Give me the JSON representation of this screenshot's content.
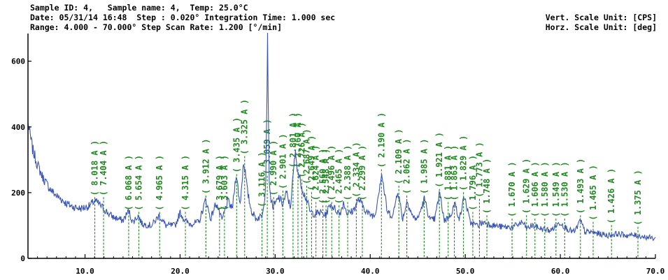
{
  "header": {
    "line1": "Sample ID: 4,   Sample name: 4,  Temp: 25.0°C",
    "line2": "Date: 05/31/14 16:48  Step : 0.020° Integration Time: 1.000 sec",
    "line3": "Range: 4.000 - 70.000° Step Scan Rate: 1.200 [°/min]",
    "vert_unit": "Vert. Scale Unit: [CPS]",
    "horz_unit": "Horz. Scale Unit: [deg]"
  },
  "colors": {
    "trace": "#3a55b5",
    "peaks": "#1f8a1f",
    "axis": "#000000"
  },
  "chart_data": {
    "type": "line",
    "title": "",
    "xlabel": "",
    "ylabel": "",
    "xlim": [
      4,
      70
    ],
    "ylim": [
      0,
      680
    ],
    "grid": false,
    "x_ticks": [
      10,
      20,
      30,
      40,
      50,
      60,
      70
    ],
    "x_tick_labels": [
      "10.0",
      "20.0",
      "30.0",
      "40.0",
      "50.0",
      "60.0",
      "70.0"
    ],
    "y_ticks": [
      0,
      200,
      400,
      600
    ],
    "y_tick_labels": [
      "0",
      "200",
      "400",
      "600"
    ],
    "series": [
      {
        "x": [
          4.0,
          4.5,
          5.0,
          5.5,
          6.0,
          6.5,
          7.0,
          7.5,
          8.0,
          8.5,
          9.0,
          9.5,
          10.0,
          10.5,
          11.0,
          11.5,
          12.0,
          12.5,
          13.0,
          14.0,
          14.6,
          15.0,
          15.6,
          16.0,
          17.0,
          17.8,
          18.5,
          19.5,
          20.0,
          20.5,
          21.0,
          22.0,
          22.7,
          23.2,
          23.8,
          24.4,
          25.0,
          25.5,
          25.9,
          26.3,
          26.7,
          27.1,
          27.5,
          28.0,
          28.6,
          29.0,
          29.2,
          29.4,
          29.8,
          30.4,
          30.8,
          31.2,
          31.6,
          32.1,
          32.5,
          33.0,
          33.3,
          33.7,
          34.2,
          34.8,
          35.3,
          35.8,
          36.3,
          36.8,
          37.2,
          37.6,
          38.2,
          38.8,
          39.2,
          39.8,
          40.5,
          41.2,
          41.8,
          42.4,
          42.9,
          43.4,
          43.9,
          44.5,
          45.0,
          45.7,
          46.3,
          46.8,
          47.3,
          47.8,
          48.4,
          48.9,
          49.4,
          49.9,
          50.5,
          51.2,
          52.0,
          53.0,
          54.0,
          55.0,
          56.0,
          56.5,
          57.0,
          58.0,
          59.0,
          60.0,
          60.5,
          61.0,
          61.5,
          62.1,
          62.6,
          63.2,
          64.0,
          65.0,
          66.0,
          67.0,
          68.0,
          69.0,
          70.0
        ],
        "y": [
          410,
          330,
          285,
          250,
          225,
          205,
          190,
          180,
          168,
          160,
          155,
          152,
          155,
          160,
          175,
          165,
          150,
          135,
          125,
          115,
          145,
          110,
          130,
          105,
          100,
          130,
          100,
          100,
          140,
          115,
          105,
          110,
          180,
          120,
          170,
          115,
          175,
          150,
          260,
          160,
          300,
          200,
          145,
          120,
          130,
          210,
          660,
          200,
          155,
          185,
          165,
          200,
          155,
          320,
          250,
          200,
          180,
          140,
          135,
          140,
          130,
          165,
          150,
          135,
          170,
          135,
          145,
          180,
          160,
          135,
          130,
          260,
          140,
          130,
          210,
          120,
          175,
          125,
          120,
          180,
          115,
          120,
          200,
          115,
          130,
          165,
          120,
          190,
          110,
          100,
          110,
          100,
          95,
          95,
          110,
          90,
          100,
          90,
          85,
          110,
          95,
          85,
          80,
          115,
          80,
          80,
          75,
          70,
          75,
          70,
          70,
          65,
          60
        ]
      }
    ],
    "peaks": [
      {
        "x": 11.03,
        "y": 165,
        "label": "8.018 A"
      },
      {
        "x": 11.95,
        "y": 165,
        "label": "7.404 A"
      },
      {
        "x": 14.59,
        "y": 120,
        "label": "6.068 A"
      },
      {
        "x": 15.66,
        "y": 120,
        "label": "5.654 A"
      },
      {
        "x": 17.85,
        "y": 120,
        "label": "4.965 A"
      },
      {
        "x": 20.56,
        "y": 120,
        "label": "4.315 A"
      },
      {
        "x": 22.71,
        "y": 170,
        "label": "3.912 A"
      },
      {
        "x": 24.15,
        "y": 120,
        "label": "3.679 A"
      },
      {
        "x": 24.67,
        "y": 120,
        "label": "3.603 A"
      },
      {
        "x": 25.95,
        "y": 235,
        "label": "3.435 A"
      },
      {
        "x": 26.79,
        "y": 290,
        "label": "3.325 A"
      },
      {
        "x": 28.62,
        "y": 130,
        "label": "3.116 A"
      },
      {
        "x": 29.17,
        "y": 230,
        "label": "3.059 A"
      },
      {
        "x": 29.84,
        "y": 165,
        "label": "2.990 A"
      },
      {
        "x": 30.81,
        "y": 185,
        "label": "2.901 A"
      },
      {
        "x": 31.88,
        "y": 250,
        "label": "2.801 A"
      },
      {
        "x": 32.4,
        "y": 250,
        "label": "2.760 A"
      },
      {
        "x": 32.81,
        "y": 220,
        "label": "2.726 A"
      },
      {
        "x": 33.32,
        "y": 200,
        "label": "2.687 A"
      },
      {
        "x": 33.83,
        "y": 180,
        "label": "2.649 A"
      },
      {
        "x": 34.29,
        "y": 150,
        "label": "2.624 A"
      },
      {
        "x": 35.02,
        "y": 140,
        "label": "2.560 A"
      },
      {
        "x": 35.35,
        "y": 140,
        "label": "2.548 A"
      },
      {
        "x": 35.95,
        "y": 150,
        "label": "2.496 A"
      },
      {
        "x": 36.72,
        "y": 140,
        "label": "2.465 A"
      },
      {
        "x": 37.63,
        "y": 150,
        "label": "2.388 A"
      },
      {
        "x": 38.54,
        "y": 160,
        "label": "2.334 A"
      },
      {
        "x": 39.17,
        "y": 150,
        "label": "2.299 A"
      },
      {
        "x": 41.18,
        "y": 250,
        "label": "2.190 A"
      },
      {
        "x": 43.01,
        "y": 200,
        "label": "2.109 A"
      },
      {
        "x": 43.85,
        "y": 170,
        "label": "2.062 A"
      },
      {
        "x": 45.67,
        "y": 170,
        "label": "1.985 A"
      },
      {
        "x": 47.28,
        "y": 190,
        "label": "1.921 A"
      },
      {
        "x": 48.2,
        "y": 150,
        "label": "1.881 A"
      },
      {
        "x": 48.85,
        "y": 150,
        "label": "1.863 A"
      },
      {
        "x": 49.81,
        "y": 180,
        "label": "1.829 A"
      },
      {
        "x": 50.79,
        "y": 120,
        "label": "1.796 A"
      },
      {
        "x": 51.49,
        "y": 160,
        "label": "1.773 A"
      },
      {
        "x": 52.27,
        "y": 110,
        "label": "1.748 A"
      },
      {
        "x": 54.92,
        "y": 100,
        "label": "1.670 A"
      },
      {
        "x": 56.44,
        "y": 110,
        "label": "1.629 A"
      },
      {
        "x": 57.33,
        "y": 100,
        "label": "1.606 A"
      },
      {
        "x": 58.36,
        "y": 100,
        "label": "1.580 A"
      },
      {
        "x": 59.54,
        "y": 100,
        "label": "1.549 A"
      },
      {
        "x": 60.46,
        "y": 100,
        "label": "1.530 A"
      },
      {
        "x": 62.11,
        "y": 110,
        "label": "1.493 A"
      },
      {
        "x": 63.45,
        "y": 90,
        "label": "1.465 A"
      },
      {
        "x": 65.38,
        "y": 80,
        "label": "1.426 A"
      },
      {
        "x": 68.16,
        "y": 75,
        "label": "1.375 A"
      }
    ]
  }
}
